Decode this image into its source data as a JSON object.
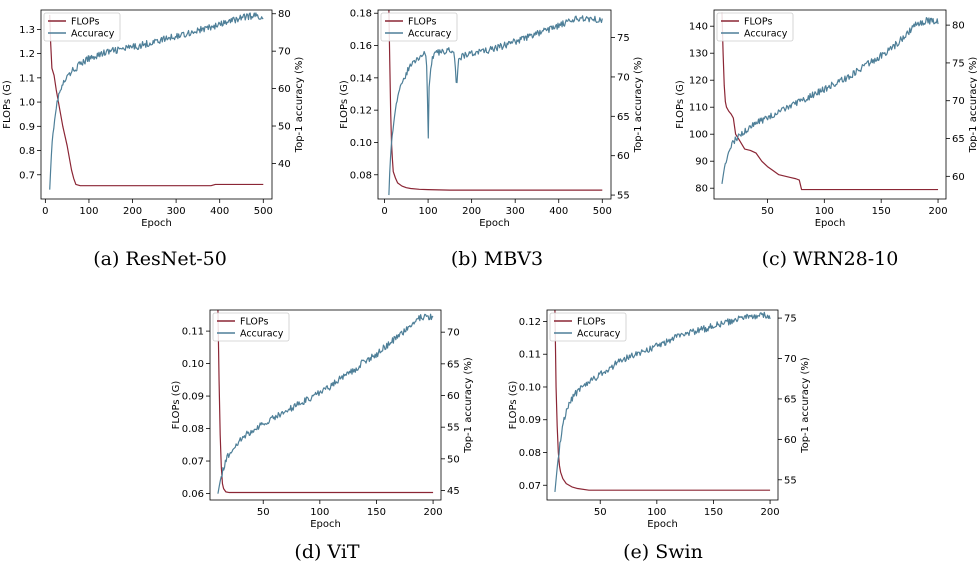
{
  "colors": {
    "flops": "#8b2635",
    "accuracy": "#4e7f98",
    "legend_border": "#cccccc"
  },
  "chart_data": [
    {
      "type": "line",
      "caption": "(a) ResNet-50",
      "xlabel": "Epoch",
      "ylabel_left": "FLOPs (G)",
      "ylabel_right": "Top-1 accuracy (%)",
      "xlim": [
        -10,
        520
      ],
      "ylim_left": [
        0.6,
        1.38
      ],
      "ylim_right": [
        30.5,
        81
      ],
      "xticks": [
        0,
        100,
        200,
        300,
        400,
        500
      ],
      "yticks_left": [
        0.7,
        0.8,
        0.9,
        1.0,
        1.1,
        1.2,
        1.3
      ],
      "yticks_left_labels": [
        "0.7",
        "0.8",
        "0.9",
        "1.0",
        "1.1",
        "1.2",
        "1.3"
      ],
      "yticks_right": [
        40,
        50,
        60,
        70,
        80
      ],
      "legend_position": "top-left",
      "legend": [
        "FLOPs",
        "Accuracy"
      ],
      "series": [
        {
          "name": "FLOPs",
          "axis": "left",
          "x": [
            10,
            12,
            15,
            20,
            25,
            30,
            35,
            40,
            45,
            50,
            55,
            60,
            65,
            70,
            80,
            120,
            200,
            300,
            380,
            390,
            500
          ],
          "y": [
            1.36,
            1.25,
            1.14,
            1.11,
            1.05,
            1.0,
            0.95,
            0.9,
            0.86,
            0.82,
            0.77,
            0.72,
            0.685,
            0.66,
            0.655,
            0.655,
            0.655,
            0.655,
            0.655,
            0.66,
            0.66
          ]
        },
        {
          "name": "Accuracy",
          "axis": "right",
          "x": [
            10,
            12,
            15,
            20,
            25,
            30,
            35,
            40,
            50,
            60,
            70,
            80,
            100,
            120,
            150,
            200,
            250,
            300,
            350,
            400,
            450,
            480,
            500
          ],
          "y": [
            33,
            38,
            45,
            51,
            55,
            58,
            59.5,
            61,
            63,
            64.5,
            65.5,
            66.5,
            68,
            69,
            70,
            71,
            72.5,
            74,
            75.5,
            77,
            79,
            79.5,
            79.2
          ]
        }
      ]
    },
    {
      "type": "line",
      "caption": "(b) MBV3",
      "xlabel": "Epoch",
      "ylabel_left": "FLOPs (G)",
      "ylabel_right": "Top-1 accuracy (%)",
      "xlim": [
        -15,
        520
      ],
      "ylim_left": [
        0.065,
        0.182
      ],
      "ylim_right": [
        54.5,
        78.5
      ],
      "xticks": [
        0,
        100,
        200,
        300,
        400,
        500
      ],
      "yticks_left": [
        0.08,
        0.1,
        0.12,
        0.14,
        0.16,
        0.18
      ],
      "yticks_left_labels": [
        "0.08",
        "0.10",
        "0.12",
        "0.14",
        "0.16",
        "0.18"
      ],
      "yticks_right": [
        55,
        60,
        65,
        70,
        75
      ],
      "legend_position": "top-left",
      "legend": [
        "FLOPs",
        "Accuracy"
      ],
      "series": [
        {
          "name": "FLOPs",
          "axis": "left",
          "x": [
            10,
            12,
            14,
            16,
            18,
            20,
            25,
            30,
            40,
            50,
            60,
            80,
            100,
            150,
            200,
            300,
            400,
            500
          ],
          "y": [
            0.182,
            0.15,
            0.12,
            0.1,
            0.09,
            0.082,
            0.078,
            0.075,
            0.073,
            0.072,
            0.0715,
            0.071,
            0.0708,
            0.0705,
            0.0705,
            0.0705,
            0.0705,
            0.0705
          ]
        },
        {
          "name": "Accuracy",
          "axis": "right",
          "x": [
            10,
            12,
            15,
            20,
            25,
            30,
            40,
            50,
            60,
            70,
            80,
            90,
            95,
            98,
            100,
            102,
            105,
            110,
            120,
            150,
            160,
            165,
            170,
            200,
            250,
            300,
            350,
            400,
            450,
            500
          ],
          "y": [
            55,
            58,
            61,
            64,
            66,
            67.5,
            69,
            70.5,
            71.5,
            72,
            72.5,
            73,
            73,
            70,
            60,
            68,
            71,
            72.5,
            73,
            73.5,
            73.5,
            68.5,
            72.5,
            73,
            73.5,
            74.5,
            75.5,
            76.5,
            77.5,
            77.3
          ]
        }
      ]
    },
    {
      "type": "line",
      "caption": "(c) WRN28-10",
      "xlabel": "Epoch",
      "ylabel_left": "FLOPs (G)",
      "ylabel_right": "Top-1 accuracy (%)",
      "xlim": [
        3,
        207
      ],
      "ylim_left": [
        76,
        146
      ],
      "ylim_right": [
        57,
        82
      ],
      "xticks": [
        50,
        100,
        150,
        200
      ],
      "yticks_left": [
        80,
        90,
        100,
        110,
        120,
        130,
        140
      ],
      "yticks_left_labels": [
        "80",
        "90",
        "100",
        "110",
        "120",
        "130",
        "140"
      ],
      "yticks_right": [
        60,
        65,
        70,
        75,
        80
      ],
      "legend_position": "top-left",
      "legend": [
        "FLOPs",
        "Accuracy"
      ],
      "series": [
        {
          "name": "FLOPs",
          "axis": "left",
          "x": [
            10,
            11,
            12,
            13,
            14,
            16,
            18,
            20,
            22,
            25,
            30,
            35,
            40,
            45,
            50,
            55,
            60,
            65,
            70,
            75,
            78,
            80,
            100,
            150,
            200
          ],
          "y": [
            145,
            130,
            118,
            112,
            110,
            108.5,
            107.5,
            106,
            100,
            98,
            94.5,
            94,
            93,
            90,
            88,
            86.5,
            85,
            84.5,
            84,
            83.5,
            83,
            79.5,
            79.5,
            79.5,
            79.5
          ]
        },
        {
          "name": "Accuracy",
          "axis": "right",
          "x": [
            10,
            12,
            14,
            16,
            18,
            20,
            25,
            30,
            40,
            50,
            60,
            70,
            80,
            90,
            100,
            110,
            120,
            130,
            140,
            150,
            160,
            170,
            180,
            190,
            200
          ],
          "y": [
            59,
            61,
            62.5,
            63.5,
            64,
            64.5,
            65.5,
            66,
            67,
            67.8,
            68.5,
            69.2,
            70,
            70.8,
            71.5,
            72.3,
            73,
            74,
            75,
            76,
            77,
            78.5,
            80,
            80.6,
            80.5
          ]
        }
      ]
    },
    {
      "type": "line",
      "caption": "(d) ViT",
      "xlabel": "Epoch",
      "ylabel_left": "FLOPs (G)",
      "ylabel_right": "Top-1 accuracy (%)",
      "xlim": [
        3,
        207
      ],
      "ylim_left": [
        0.058,
        0.1165
      ],
      "ylim_right": [
        43.5,
        73.5
      ],
      "xticks": [
        50,
        100,
        150,
        200
      ],
      "yticks_left": [
        0.06,
        0.07,
        0.08,
        0.09,
        0.1,
        0.11
      ],
      "yticks_left_labels": [
        "0.06",
        "0.07",
        "0.08",
        "0.09",
        "0.10",
        "0.11"
      ],
      "yticks_right": [
        45,
        50,
        55,
        60,
        65,
        70
      ],
      "legend_position": "top-left",
      "legend": [
        "FLOPs",
        "Accuracy"
      ],
      "series": [
        {
          "name": "FLOPs",
          "axis": "left",
          "x": [
            10,
            11,
            12,
            13,
            14,
            15,
            17,
            20,
            30,
            50,
            100,
            150,
            200
          ],
          "y": [
            0.1165,
            0.095,
            0.078,
            0.068,
            0.063,
            0.0615,
            0.0605,
            0.0603,
            0.0603,
            0.0603,
            0.0603,
            0.0603,
            0.0603
          ]
        },
        {
          "name": "Accuracy",
          "axis": "right",
          "x": [
            10,
            12,
            14,
            16,
            18,
            20,
            25,
            30,
            40,
            50,
            60,
            70,
            80,
            90,
            100,
            110,
            120,
            130,
            140,
            150,
            160,
            170,
            180,
            190,
            200
          ],
          "y": [
            44.5,
            46.5,
            48,
            49,
            50,
            51,
            52,
            53,
            54.5,
            55.5,
            56.5,
            57.5,
            58.5,
            59.5,
            60.5,
            61.5,
            63,
            64,
            65.5,
            66.5,
            68,
            69.5,
            71,
            72.5,
            72.3
          ]
        }
      ]
    },
    {
      "type": "line",
      "caption": "(e) Swin",
      "xlabel": "Epoch",
      "ylabel_left": "FLOPs (G)",
      "ylabel_right": "Top-1 accuracy (%)",
      "xlim": [
        3,
        207
      ],
      "ylim_left": [
        0.0655,
        0.1235
      ],
      "ylim_right": [
        52.5,
        76
      ],
      "xticks": [
        50,
        100,
        150,
        200
      ],
      "yticks_left": [
        0.07,
        0.08,
        0.09,
        0.1,
        0.11,
        0.12
      ],
      "yticks_left_labels": [
        "0.07",
        "0.08",
        "0.09",
        "0.10",
        "0.11",
        "0.12"
      ],
      "yticks_right": [
        55,
        60,
        65,
        70,
        75
      ],
      "legend_position": "top-left",
      "legend": [
        "FLOPs",
        "Accuracy"
      ],
      "series": [
        {
          "name": "FLOPs",
          "axis": "left",
          "x": [
            10,
            11,
            12,
            13,
            14,
            15,
            17,
            20,
            25,
            30,
            40,
            50,
            100,
            150,
            200
          ],
          "y": [
            0.1235,
            0.1,
            0.088,
            0.08,
            0.076,
            0.074,
            0.072,
            0.0705,
            0.0695,
            0.069,
            0.0685,
            0.0685,
            0.0685,
            0.0685,
            0.0685
          ]
        },
        {
          "name": "Accuracy",
          "axis": "right",
          "x": [
            10,
            12,
            14,
            16,
            18,
            20,
            25,
            30,
            40,
            50,
            60,
            70,
            80,
            90,
            100,
            110,
            120,
            130,
            140,
            150,
            160,
            170,
            180,
            190,
            200
          ],
          "y": [
            53.5,
            56.5,
            59,
            61,
            62.5,
            63.5,
            65,
            66,
            67,
            68,
            69,
            69.8,
            70.5,
            71,
            71.5,
            72.2,
            72.8,
            73.2,
            73.6,
            74,
            74.4,
            74.8,
            75.2,
            75.3,
            75.3
          ]
        }
      ]
    }
  ]
}
